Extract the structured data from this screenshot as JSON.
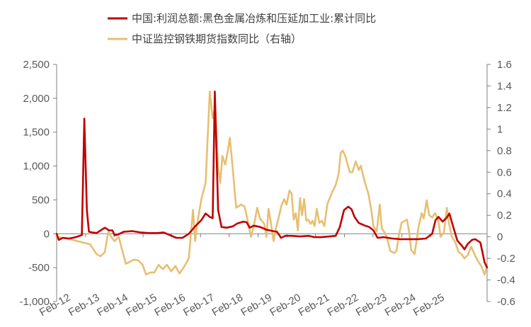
{
  "chart_data": {
    "type": "line",
    "series": [
      {
        "name": "中国:利润总额:黑色金属冶炼和压延加工业:累计同比",
        "color": "#C00000",
        "axis": "left",
        "points": [
          [
            0,
            0
          ],
          [
            0.5,
            -90
          ],
          [
            1.5,
            -60
          ],
          [
            3,
            -70
          ],
          [
            4.5,
            -50
          ],
          [
            6,
            -20
          ],
          [
            6.6,
            1700
          ],
          [
            7.2,
            350
          ],
          [
            7.7,
            30
          ],
          [
            8.5,
            20
          ],
          [
            9.5,
            10
          ],
          [
            10.5,
            50
          ],
          [
            11.5,
            90
          ],
          [
            12.5,
            50
          ],
          [
            13.3,
            50
          ],
          [
            13.8,
            -20
          ],
          [
            14.5,
            -15
          ],
          [
            16,
            30
          ],
          [
            18,
            40
          ],
          [
            20,
            20
          ],
          [
            22,
            10
          ],
          [
            24,
            10
          ],
          [
            25.5,
            20
          ],
          [
            27,
            -20
          ],
          [
            28.5,
            -60
          ],
          [
            30,
            -60
          ],
          [
            31.5,
            0
          ],
          [
            33,
            110
          ],
          [
            34.5,
            200
          ],
          [
            35.5,
            300
          ],
          [
            36.5,
            250
          ],
          [
            37.2,
            230
          ],
          [
            37.7,
            2100
          ],
          [
            38.5,
            350
          ],
          [
            39.3,
            100
          ],
          [
            40.5,
            90
          ],
          [
            42,
            110
          ],
          [
            43,
            150
          ],
          [
            44.5,
            180
          ],
          [
            45.3,
            170
          ],
          [
            46,
            90
          ],
          [
            47,
            120
          ],
          [
            48.5,
            100
          ],
          [
            50,
            60
          ],
          [
            51.5,
            40
          ],
          [
            52.5,
            30
          ],
          [
            53.5,
            -60
          ],
          [
            54.5,
            -30
          ],
          [
            56,
            -30
          ],
          [
            58,
            -40
          ],
          [
            60,
            -30
          ],
          [
            61.5,
            -50
          ],
          [
            63,
            -50
          ],
          [
            65,
            -40
          ],
          [
            66.5,
            -30
          ],
          [
            67.5,
            100
          ],
          [
            68.5,
            350
          ],
          [
            69.5,
            400
          ],
          [
            70.3,
            360
          ],
          [
            71,
            250
          ],
          [
            72,
            160
          ],
          [
            73.5,
            120
          ],
          [
            74.5,
            100
          ],
          [
            75.5,
            50
          ],
          [
            76.5,
            -60
          ],
          [
            78,
            -50
          ],
          [
            80,
            -70
          ],
          [
            82,
            -80
          ],
          [
            84,
            -80
          ],
          [
            86,
            -80
          ],
          [
            88,
            -70
          ],
          [
            89.5,
            0
          ],
          [
            90.3,
            200
          ],
          [
            91,
            250
          ],
          [
            92,
            180
          ],
          [
            93,
            240
          ],
          [
            93.6,
            300
          ],
          [
            94.3,
            150
          ],
          [
            95.5,
            -100
          ],
          [
            96.5,
            -170
          ],
          [
            97.2,
            -230
          ],
          [
            98,
            -150
          ],
          [
            99,
            -90
          ],
          [
            99.8,
            -80
          ],
          [
            101,
            -130
          ],
          [
            102,
            -420
          ],
          [
            102.6,
            -500
          ]
        ]
      },
      {
        "name": "中证监控钢铁期货指数同比（右轴）",
        "color": "#E6BF73",
        "axis": "right",
        "points": [
          [
            0,
            0
          ],
          [
            3,
            -0.02
          ],
          [
            6,
            -0.05
          ],
          [
            8,
            -0.07
          ],
          [
            9.5,
            -0.16
          ],
          [
            10.5,
            -0.18
          ],
          [
            11.5,
            -0.14
          ],
          [
            12.3,
            0.05
          ],
          [
            13,
            0.0
          ],
          [
            13.8,
            -0.04
          ],
          [
            14.8,
            0.0
          ],
          [
            15.6,
            -0.12
          ],
          [
            16.5,
            -0.25
          ],
          [
            17.5,
            -0.23
          ],
          [
            18.5,
            -0.21
          ],
          [
            19.5,
            -0.22
          ],
          [
            20.5,
            -0.26
          ],
          [
            21.3,
            -0.35
          ],
          [
            22.3,
            -0.33
          ],
          [
            23.3,
            -0.33
          ],
          [
            24.3,
            -0.26
          ],
          [
            25.3,
            -0.3
          ],
          [
            26.3,
            -0.26
          ],
          [
            27.3,
            -0.32
          ],
          [
            28.3,
            -0.27
          ],
          [
            29.3,
            -0.34
          ],
          [
            30.5,
            -0.27
          ],
          [
            31.5,
            -0.2
          ],
          [
            32.5,
            0.25
          ],
          [
            33,
            -0.04
          ],
          [
            33.5,
            0.12
          ],
          [
            34.5,
            0.35
          ],
          [
            35.5,
            0.5
          ],
          [
            36.5,
            1.35
          ],
          [
            37.2,
            1.1
          ],
          [
            37.8,
            1.2
          ],
          [
            38.5,
            0.65
          ],
          [
            39,
            0.5
          ],
          [
            39.5,
            0.75
          ],
          [
            40.2,
            0.67
          ],
          [
            40.8,
            0.8
          ],
          [
            41.3,
            0.92
          ],
          [
            42,
            0.62
          ],
          [
            42.8,
            0.27
          ],
          [
            44,
            0.3
          ],
          [
            44.8,
            0.28
          ],
          [
            45.5,
            0.16
          ],
          [
            46.3,
            0.0
          ],
          [
            47,
            0.1
          ],
          [
            47.8,
            0.27
          ],
          [
            48.5,
            0.17
          ],
          [
            49.5,
            0.12
          ],
          [
            50,
            0.0
          ],
          [
            50.5,
            0.26
          ],
          [
            51,
            0.15
          ],
          [
            51.7,
            -0.04
          ],
          [
            52.5,
            0.12
          ],
          [
            53,
            0.19
          ],
          [
            53.5,
            0.28
          ],
          [
            54.2,
            0.35
          ],
          [
            54.8,
            0.3
          ],
          [
            55.5,
            0.43
          ],
          [
            56,
            0.4
          ],
          [
            56.5,
            0.16
          ],
          [
            57,
            0.22
          ],
          [
            57.5,
            0.06
          ],
          [
            58,
            0.36
          ],
          [
            58.5,
            0.2
          ],
          [
            59,
            0.35
          ],
          [
            59.5,
            0.15
          ],
          [
            60,
            0.16
          ],
          [
            60.5,
            0.12
          ],
          [
            61,
            0.15
          ],
          [
            61.5,
            0.1
          ],
          [
            62,
            0.26
          ],
          [
            62.6,
            0.13
          ],
          [
            63.2,
            0.15
          ],
          [
            63.8,
            0.1
          ],
          [
            64.5,
            0.3
          ],
          [
            65.5,
            0.4
          ],
          [
            66.5,
            0.48
          ],
          [
            67.2,
            0.58
          ],
          [
            67.7,
            0.78
          ],
          [
            68.2,
            0.8
          ],
          [
            68.8,
            0.75
          ],
          [
            69.3,
            0.68
          ],
          [
            69.9,
            0.6
          ],
          [
            70.5,
            0.6
          ],
          [
            71.3,
            0.7
          ],
          [
            72,
            0.62
          ],
          [
            72.5,
            0.66
          ],
          [
            73.5,
            0.5
          ],
          [
            74.3,
            0.4
          ],
          [
            75,
            0.25
          ],
          [
            75.5,
            0.1
          ],
          [
            76.3,
            0.05
          ],
          [
            77,
            0.3
          ],
          [
            77.5,
            0.08
          ],
          [
            78,
            0.05
          ],
          [
            78.7,
            0.0
          ],
          [
            79.5,
            -0.13
          ],
          [
            80.5,
            -0.15
          ],
          [
            81,
            -0.13
          ],
          [
            81.5,
            0.0
          ],
          [
            82.2,
            0.13
          ],
          [
            83,
            0.15
          ],
          [
            83.5,
            0.16
          ],
          [
            84,
            0.05
          ],
          [
            84.5,
            -0.12
          ],
          [
            85.3,
            -0.16
          ],
          [
            86.3,
            0.1
          ],
          [
            87,
            0.22
          ],
          [
            87.5,
            0.17
          ],
          [
            88.2,
            0.34
          ],
          [
            88.8,
            0.2
          ],
          [
            89.5,
            0.18
          ],
          [
            90.2,
            0.22
          ],
          [
            91,
            0.15
          ],
          [
            91.5,
            0.0
          ],
          [
            92.3,
            0.04
          ],
          [
            93,
            0.27
          ],
          [
            93.5,
            0.13
          ],
          [
            94.2,
            0.0
          ],
          [
            95,
            -0.05
          ],
          [
            95.8,
            -0.14
          ],
          [
            96.5,
            -0.16
          ],
          [
            97.2,
            -0.2
          ],
          [
            98,
            -0.17
          ],
          [
            98.8,
            -0.09
          ],
          [
            99.8,
            -0.18
          ],
          [
            100.5,
            -0.23
          ],
          [
            101.2,
            -0.27
          ],
          [
            102,
            -0.35
          ],
          [
            102.6,
            -0.27
          ]
        ]
      }
    ],
    "categories": [
      "Feb-12",
      "Feb-13",
      "Feb-14",
      "Feb-15",
      "Feb-16",
      "Feb-17",
      "Feb-18",
      "Feb-19",
      "Feb-20",
      "Feb-21",
      "Feb-22",
      "Feb-23",
      "Feb-24",
      "Feb-25"
    ],
    "category_positions": [
      0,
      6.9,
      13.7,
      20.6,
      27.4,
      34.3,
      41.1,
      48,
      54.9,
      61.7,
      68.6,
      75.4,
      82.3,
      89.1
    ],
    "x_range": [
      0,
      102.6
    ],
    "y_left": {
      "min": -1000,
      "max": 2500,
      "step": 500,
      "tick_labels": [
        "-1,000",
        "-500",
        "0",
        "500",
        "1,000",
        "1,500",
        "2,000",
        "2,500"
      ]
    },
    "y_right": {
      "min": -0.6,
      "max": 1.6,
      "step": 0.2,
      "tick_labels": [
        "-0.6",
        "-0.4",
        "-0.2",
        "0",
        "0.2",
        "0.4",
        "0.6",
        "0.8",
        "1",
        "1.2",
        "1.4",
        "1.6"
      ]
    },
    "legend": {
      "position": "top-center",
      "items": [
        {
          "label": "中国:利润总额:黑色金属冶炼和压延加工业:累计同比",
          "color": "#C00000"
        },
        {
          "label": "中证监控钢铁期货指数同比（右轴）",
          "color": "#E6BF73"
        }
      ]
    },
    "grid": false,
    "title": "",
    "xlabel": "",
    "ylabel": ""
  }
}
